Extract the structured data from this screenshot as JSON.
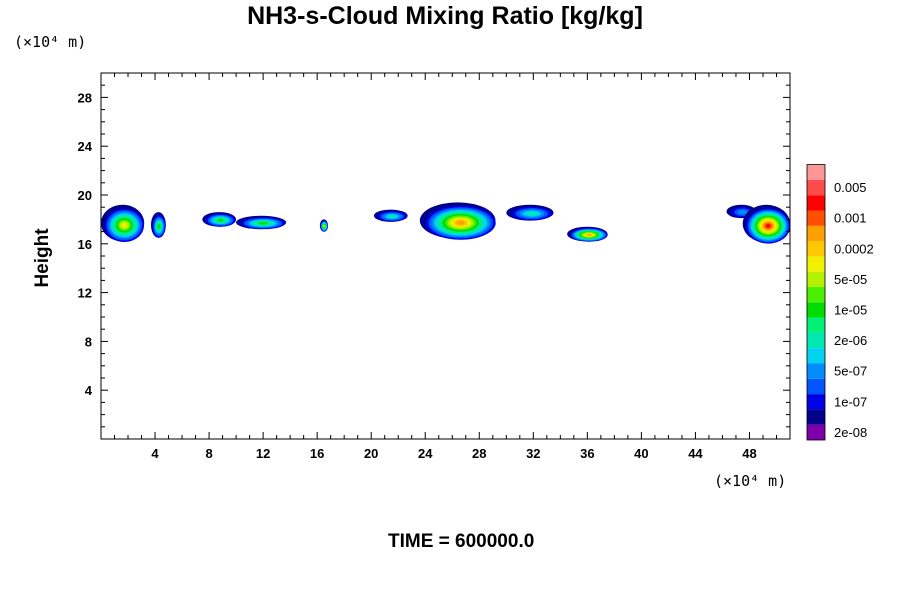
{
  "chart_data": {
    "type": "heatmap",
    "title": "NH3-s-Cloud Mixing Ratio [kg/kg]",
    "ylabel": "Height",
    "x_unit": "(×10⁴ m)",
    "y_unit": "(×10⁴ m)",
    "footer": "TIME = 600000.0",
    "xlim": [
      0,
      51
    ],
    "ylim": [
      0,
      30
    ],
    "x_ticks": [
      "4",
      "8",
      "12",
      "16",
      "20",
      "24",
      "28",
      "32",
      "36",
      "40",
      "44",
      "48"
    ],
    "y_ticks": [
      "4",
      "8",
      "12",
      "16",
      "20",
      "24",
      "28"
    ],
    "colorbar": {
      "colors": [
        "#7f00aa",
        "#00008c",
        "#0000e6",
        "#0055ff",
        "#008cff",
        "#00d2f0",
        "#00e6b4",
        "#00f078",
        "#00dc00",
        "#4bf000",
        "#b4f000",
        "#f0f000",
        "#ffc800",
        "#ffa000",
        "#ff5000",
        "#ff0000",
        "#ff4b4b",
        "#ff9696"
      ],
      "labels": [
        "2e-08",
        "1e-07",
        "5e-07",
        "2e-06",
        "1e-05",
        "5e-05",
        "0.0002",
        "0.001",
        "0.005"
      ]
    },
    "cloud_regions": [
      {
        "x": [
          0.0,
          3.2
        ],
        "y": [
          16.2,
          19.2
        ],
        "max_level": 11
      },
      {
        "x": [
          3.7,
          4.8
        ],
        "y": [
          16.5,
          18.6
        ],
        "max_level": 8
      },
      {
        "x": [
          7.5,
          10.0
        ],
        "y": [
          17.4,
          18.6
        ],
        "max_level": 8
      },
      {
        "x": [
          10.0,
          13.7
        ],
        "y": [
          17.2,
          18.3
        ],
        "max_level": 8
      },
      {
        "x": [
          16.2,
          16.8
        ],
        "y": [
          17.0,
          18.0
        ],
        "max_level": 11
      },
      {
        "x": [
          20.2,
          22.7
        ],
        "y": [
          17.8,
          18.8
        ],
        "max_level": 6
      },
      {
        "x": [
          23.6,
          29.2
        ],
        "y": [
          16.4,
          19.4
        ],
        "max_level": 13
      },
      {
        "x": [
          30.0,
          33.5
        ],
        "y": [
          17.9,
          19.2
        ],
        "max_level": 6
      },
      {
        "x": [
          34.5,
          37.5
        ],
        "y": [
          16.2,
          17.4
        ],
        "max_level": 13
      },
      {
        "x": [
          46.3,
          48.5
        ],
        "y": [
          18.1,
          19.2
        ],
        "max_level": 4
      },
      {
        "x": [
          47.5,
          51.0
        ],
        "y": [
          16.1,
          19.2
        ],
        "max_level": 15
      }
    ]
  }
}
